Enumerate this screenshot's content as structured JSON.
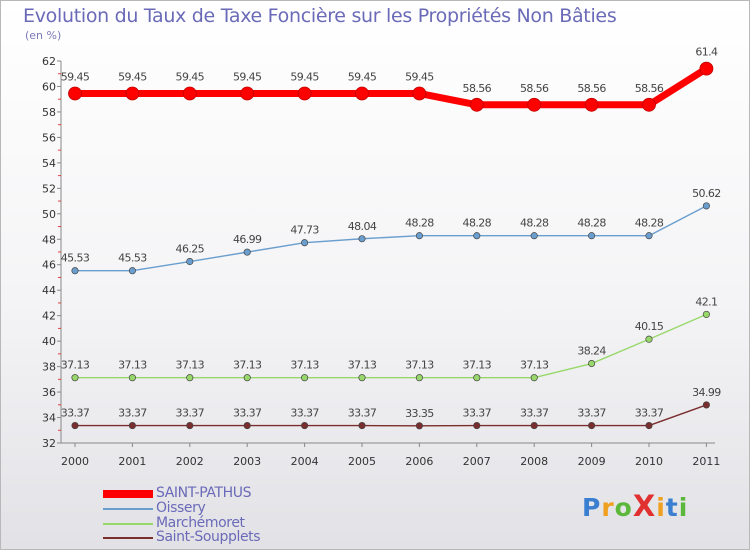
{
  "chart_data": {
    "type": "line",
    "title": "Evolution du Taux de Taxe Foncière sur les Propriétés Non Bâties",
    "ylabel": "(en %)",
    "xlabel": "",
    "ylim": [
      32,
      62
    ],
    "yticks": [
      32,
      34,
      36,
      38,
      40,
      42,
      44,
      46,
      48,
      50,
      52,
      54,
      56,
      58,
      60,
      62
    ],
    "categories": [
      "2000",
      "2001",
      "2002",
      "2003",
      "2004",
      "2005",
      "2006",
      "2007",
      "2008",
      "2009",
      "2010",
      "2011"
    ],
    "grid": false,
    "legend_position": "bottom-left",
    "series": [
      {
        "name": "SAINT-PATHUS",
        "color": "#ff0000",
        "values": [
          59.45,
          59.45,
          59.45,
          59.45,
          59.45,
          59.45,
          59.45,
          58.56,
          58.56,
          58.56,
          58.56,
          61.4
        ],
        "labels": [
          "59.45",
          "59.45",
          "59.45",
          "59.45",
          "59.45",
          "59.45",
          "59.45",
          "58.56",
          "58.56",
          "58.56",
          "58.56",
          "61.4"
        ]
      },
      {
        "name": "Oissery",
        "color": "#6a9ece",
        "values": [
          45.53,
          45.53,
          46.25,
          46.99,
          47.73,
          48.04,
          48.28,
          48.28,
          48.28,
          48.28,
          48.28,
          50.62
        ],
        "labels": [
          "45.53",
          "45.53",
          "46.25",
          "46.99",
          "47.73",
          "48.04",
          "48.28",
          "48.28",
          "48.28",
          "48.28",
          "48.28",
          "50.62"
        ]
      },
      {
        "name": "Marchémoret",
        "color": "#98d86a",
        "values": [
          37.13,
          37.13,
          37.13,
          37.13,
          37.13,
          37.13,
          37.13,
          37.13,
          37.13,
          38.24,
          40.15,
          42.1
        ],
        "labels": [
          "37.13",
          "37.13",
          "37.13",
          "37.13",
          "37.13",
          "37.13",
          "37.13",
          "37.13",
          "37.13",
          "38.24",
          "40.15",
          "42.1"
        ]
      },
      {
        "name": "Saint-Soupplets",
        "color": "#7a2e2e",
        "values": [
          33.37,
          33.37,
          33.37,
          33.37,
          33.37,
          33.37,
          33.35,
          33.37,
          33.37,
          33.37,
          33.37,
          34.99
        ],
        "labels": [
          "33.37",
          "33.37",
          "33.37",
          "33.37",
          "33.37",
          "33.37",
          "33.35",
          "33.37",
          "33.37",
          "33.37",
          "33.37",
          "34.99"
        ]
      }
    ]
  },
  "logo": {
    "text": "ProXiti"
  }
}
